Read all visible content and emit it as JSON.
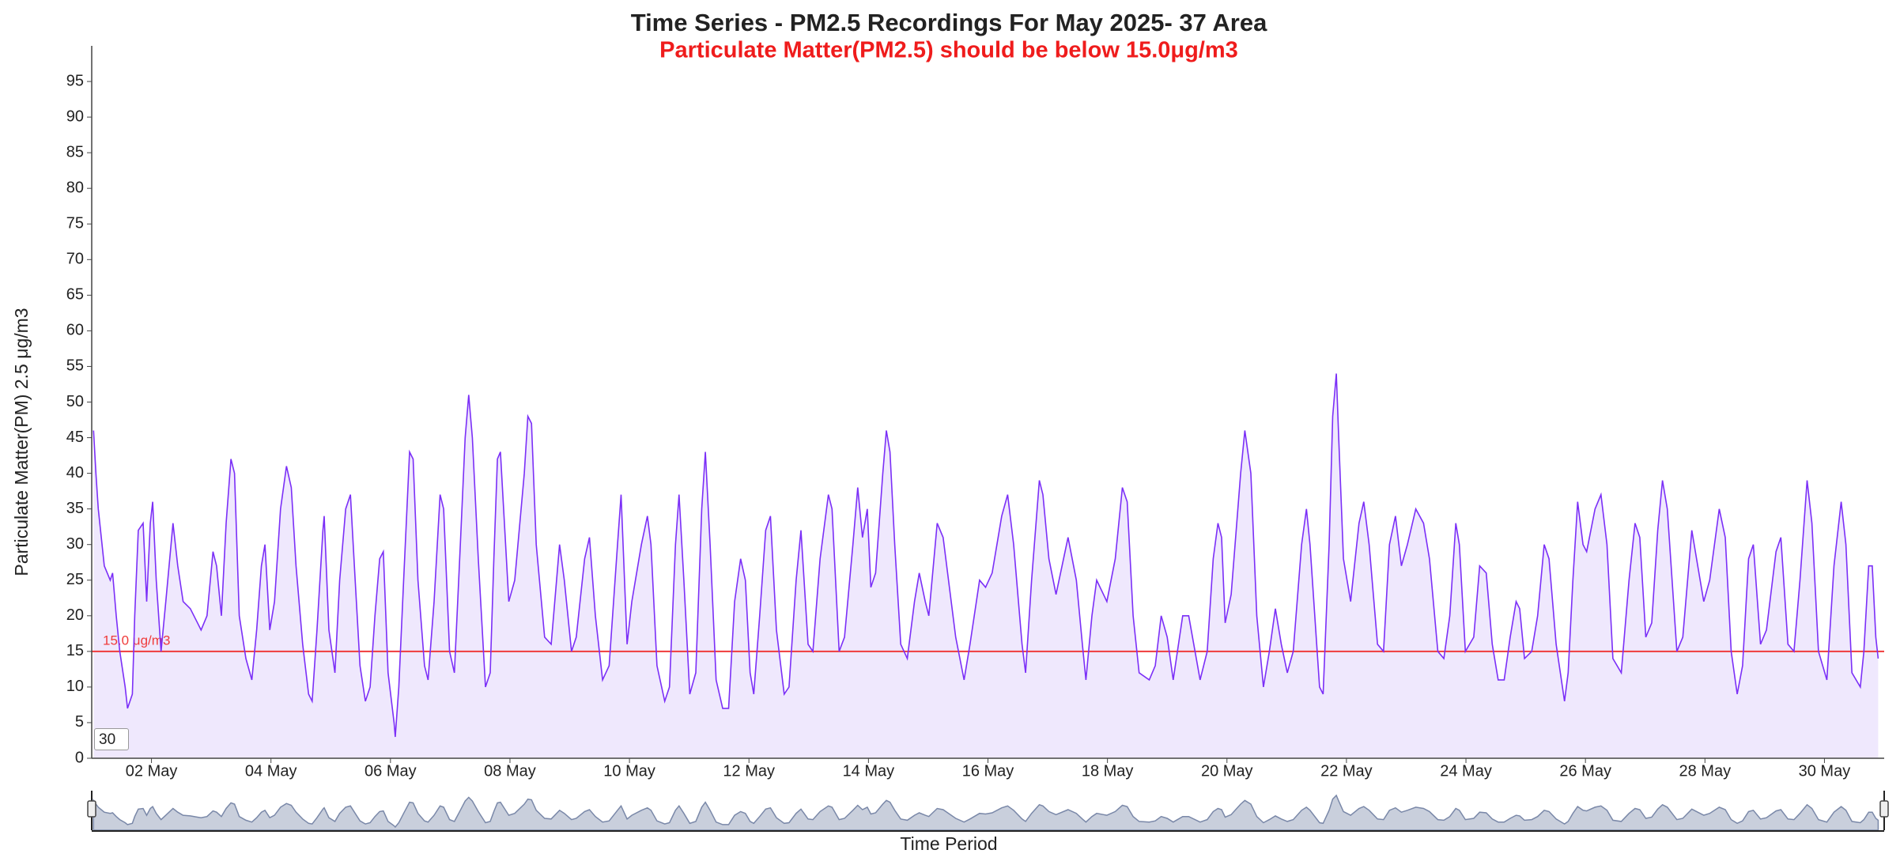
{
  "chart_data": {
    "type": "area",
    "title": "Time Series - PM2.5 Recordings For May 2025- 37 Area",
    "subtitle": "Particulate Matter(PM2.5) should be below 15.0μg/m3",
    "x_label": "Time Period",
    "y_label": "Particulate Matter(PM) 2.5 μg/m3",
    "range_input": "30",
    "color": "#7b2ff7",
    "fill_color": "#efe8fd",
    "navigator_color": "#7a88a8",
    "threshold": {
      "value": 15,
      "label": "15.0 μg/m3",
      "color": "#ef3b3b"
    },
    "xlim": [
      1,
      31
    ],
    "ylim": [
      0,
      100
    ],
    "xticks": [
      {
        "value": 2,
        "label": "02 May"
      },
      {
        "value": 4,
        "label": "04 May"
      },
      {
        "value": 6,
        "label": "06 May"
      },
      {
        "value": 8,
        "label": "08 May"
      },
      {
        "value": 10,
        "label": "10 May"
      },
      {
        "value": 12,
        "label": "12 May"
      },
      {
        "value": 14,
        "label": "14 May"
      },
      {
        "value": 16,
        "label": "16 May"
      },
      {
        "value": 18,
        "label": "18 May"
      },
      {
        "value": 20,
        "label": "20 May"
      },
      {
        "value": 22,
        "label": "22 May"
      },
      {
        "value": 24,
        "label": "24 May"
      },
      {
        "value": 26,
        "label": "26 May"
      },
      {
        "value": 28,
        "label": "28 May"
      },
      {
        "value": 30,
        "label": "30 May"
      }
    ],
    "yticks": [
      0,
      5,
      10,
      15,
      20,
      25,
      30,
      35,
      40,
      45,
      50,
      55,
      60,
      65,
      70,
      75,
      80,
      85,
      90,
      95
    ],
    "x": [
      1.03,
      1.07,
      1.11,
      1.21,
      1.31,
      1.35,
      1.41,
      1.47,
      1.56,
      1.6,
      1.68,
      1.72,
      1.78,
      1.86,
      1.92,
      1.98,
      2.02,
      2.08,
      2.16,
      2.24,
      2.36,
      2.44,
      2.53,
      2.65,
      2.77,
      2.83,
      2.93,
      3.03,
      3.09,
      3.17,
      3.25,
      3.33,
      3.39,
      3.47,
      3.58,
      3.68,
      3.76,
      3.84,
      3.9,
      3.98,
      4.06,
      4.16,
      4.26,
      4.34,
      4.42,
      4.53,
      4.63,
      4.69,
      4.77,
      4.87,
      4.89,
      4.97,
      5.07,
      5.15,
      5.25,
      5.33,
      5.41,
      5.49,
      5.58,
      5.66,
      5.74,
      5.82,
      5.88,
      5.96,
      6.06,
      6.08,
      6.14,
      6.22,
      6.32,
      6.38,
      6.46,
      6.57,
      6.63,
      6.73,
      6.83,
      6.89,
      6.99,
      7.07,
      7.17,
      7.25,
      7.31,
      7.37,
      7.47,
      7.59,
      7.67,
      7.73,
      7.79,
      7.84,
      7.98,
      8.08,
      8.24,
      8.3,
      8.36,
      8.44,
      8.58,
      8.69,
      8.83,
      8.91,
      9.03,
      9.11,
      9.25,
      9.33,
      9.43,
      9.55,
      9.66,
      9.8,
      9.86,
      9.96,
      10.04,
      10.2,
      10.3,
      10.36,
      10.46,
      10.59,
      10.67,
      10.77,
      10.83,
      10.91,
      11.01,
      11.11,
      11.21,
      11.27,
      11.35,
      11.45,
      11.56,
      11.66,
      11.76,
      11.86,
      11.94,
      12.02,
      12.08,
      12.18,
      12.28,
      12.36,
      12.46,
      12.59,
      12.67,
      12.79,
      12.87,
      12.99,
      13.07,
      13.19,
      13.33,
      13.39,
      13.51,
      13.6,
      13.74,
      13.82,
      13.9,
      13.98,
      14.04,
      14.12,
      14.24,
      14.3,
      14.36,
      14.44,
      14.54,
      14.65,
      14.77,
      14.85,
      14.95,
      15.01,
      15.15,
      15.25,
      15.46,
      15.6,
      15.7,
      15.86,
      15.96,
      16.07,
      16.23,
      16.33,
      16.43,
      16.57,
      16.63,
      16.73,
      16.86,
      16.92,
      17.02,
      17.14,
      17.34,
      17.48,
      17.58,
      17.64,
      17.74,
      17.82,
      17.99,
      18.13,
      18.25,
      18.33,
      18.43,
      18.53,
      18.7,
      18.8,
      18.9,
      19.0,
      19.1,
      19.26,
      19.36,
      19.55,
      19.67,
      19.77,
      19.85,
      19.91,
      19.97,
      20.07,
      20.23,
      20.3,
      20.4,
      20.5,
      20.61,
      20.71,
      20.81,
      20.91,
      21.01,
      21.11,
      21.25,
      21.33,
      21.39,
      21.55,
      21.61,
      21.71,
      21.77,
      21.83,
      21.87,
      21.95,
      22.07,
      22.21,
      22.29,
      22.38,
      22.52,
      22.62,
      22.72,
      22.82,
      22.92,
      23.02,
      23.16,
      23.29,
      23.39,
      23.53,
      23.63,
      23.73,
      23.83,
      23.89,
      23.99,
      24.13,
      24.23,
      24.34,
      24.44,
      24.54,
      24.64,
      24.74,
      24.84,
      24.9,
      24.98,
      25.1,
      25.2,
      25.31,
      25.39,
      25.51,
      25.65,
      25.71,
      25.79,
      25.87,
      25.96,
      26.02,
      26.16,
      26.26,
      26.36,
      26.46,
      26.6,
      26.73,
      26.83,
      26.91,
      27.01,
      27.11,
      27.21,
      27.29,
      27.37,
      27.53,
      27.63,
      27.78,
      27.88,
      27.98,
      28.08,
      28.24,
      28.34,
      28.44,
      28.54,
      28.63,
      28.73,
      28.81,
      28.93,
      29.03,
      29.19,
      29.27,
      29.39,
      29.49,
      29.59,
      29.71,
      29.79,
      29.9,
      30.04,
      30.16,
      30.28,
      30.36,
      30.46,
      30.6,
      30.66,
      30.74,
      30.8,
      30.86,
      30.9
    ],
    "values": [
      46,
      40,
      35,
      27,
      25,
      26,
      20,
      15,
      10,
      7,
      9,
      20,
      32,
      33,
      22,
      33,
      36,
      25,
      15,
      22,
      33,
      27,
      22,
      21,
      19,
      18,
      20,
      29,
      27,
      20,
      33,
      42,
      40,
      20,
      14,
      11,
      18,
      27,
      30,
      18,
      22,
      35,
      41,
      38,
      27,
      16,
      9,
      8,
      18,
      32,
      34,
      18,
      12,
      25,
      35,
      37,
      25,
      13,
      8,
      10,
      20,
      28,
      29,
      12,
      5,
      3,
      10,
      25,
      43,
      42,
      25,
      13,
      11,
      22,
      37,
      35,
      15,
      12,
      30,
      45,
      51,
      45,
      28,
      10,
      12,
      28,
      42,
      43,
      22,
      25,
      40,
      48,
      47,
      30,
      17,
      16,
      30,
      25,
      15,
      17,
      28,
      31,
      20,
      11,
      13,
      30,
      37,
      16,
      22,
      30,
      34,
      30,
      13,
      8,
      10,
      30,
      37,
      25,
      9,
      12,
      35,
      43,
      30,
      11,
      7,
      7,
      22,
      28,
      25,
      12,
      9,
      20,
      32,
      34,
      18,
      9,
      10,
      25,
      32,
      16,
      15,
      28,
      37,
      35,
      15,
      17,
      30,
      38,
      31,
      35,
      24,
      26,
      40,
      46,
      43,
      30,
      16,
      14,
      22,
      26,
      22,
      20,
      33,
      31,
      17,
      11,
      16,
      25,
      24,
      26,
      34,
      37,
      30,
      16,
      12,
      25,
      39,
      37,
      28,
      23,
      31,
      25,
      16,
      11,
      20,
      25,
      22,
      28,
      38,
      36,
      20,
      12,
      11,
      13,
      20,
      17,
      11,
      20,
      20,
      11,
      15,
      28,
      33,
      31,
      19,
      23,
      40,
      46,
      40,
      20,
      10,
      15,
      21,
      16,
      12,
      15,
      30,
      35,
      30,
      10,
      9,
      30,
      48,
      54,
      45,
      28,
      22,
      33,
      36,
      30,
      16,
      15,
      30,
      34,
      27,
      30,
      35,
      33,
      28,
      15,
      14,
      20,
      33,
      30,
      15,
      17,
      27,
      26,
      16,
      11,
      11,
      17,
      22,
      21,
      14,
      15,
      20,
      30,
      28,
      16,
      8,
      12,
      25,
      36,
      30,
      29,
      35,
      37,
      30,
      14,
      12,
      25,
      33,
      31,
      17,
      19,
      32,
      39,
      35,
      15,
      17,
      32,
      27,
      22,
      25,
      35,
      31,
      15,
      9,
      13,
      28,
      30,
      16,
      18,
      29,
      31,
      16,
      15,
      25,
      39,
      33,
      15,
      11,
      27,
      36,
      30,
      12,
      10,
      15,
      27,
      27,
      17,
      14
    ]
  }
}
